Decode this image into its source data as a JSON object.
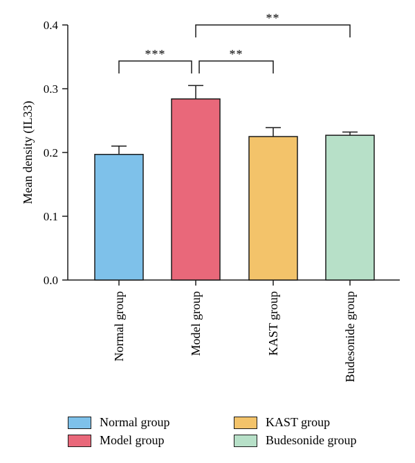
{
  "chart_data": {
    "type": "bar",
    "title": "",
    "xlabel": "",
    "ylabel": "Mean density (IL33)",
    "ylim": [
      0,
      0.4
    ],
    "yticks": [
      "0.0",
      "0.1",
      "0.2",
      "0.3",
      "0.4"
    ],
    "categories": [
      "Normal group",
      "Model group",
      "KAST group",
      "Budesonide group"
    ],
    "values": [
      0.197,
      0.284,
      0.225,
      0.227
    ],
    "errors": [
      0.013,
      0.021,
      0.014,
      0.005
    ],
    "colors": [
      "#7ec1ea",
      "#e9687a",
      "#f3c36a",
      "#b7e0c8"
    ],
    "significance": [
      {
        "from": 0,
        "to": 1,
        "label": "***"
      },
      {
        "from": 1,
        "to": 2,
        "label": "**"
      },
      {
        "from": 1,
        "to": 3,
        "label": "**"
      }
    ],
    "legend": [
      {
        "label": "Normal group",
        "color": "#7ec1ea"
      },
      {
        "label": "Model group",
        "color": "#e9687a"
      },
      {
        "label": "KAST group",
        "color": "#f3c36a"
      },
      {
        "label": "Budesonide group",
        "color": "#b7e0c8"
      }
    ],
    "grid": false,
    "legend_position": "bottom"
  }
}
